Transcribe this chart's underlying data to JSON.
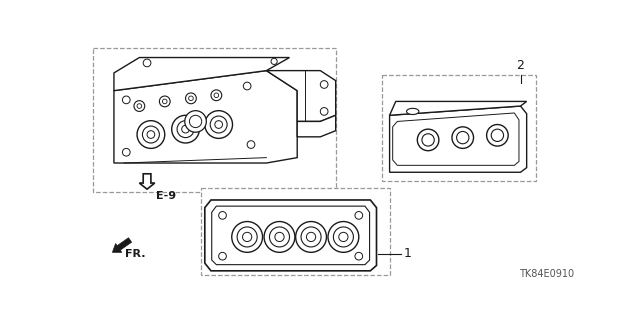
{
  "bg_color": "#ffffff",
  "line_color": "#1a1a1a",
  "dash_color": "#999999",
  "diagram_code": "TK84E0910",
  "ref_code": "E-9",
  "part1_label": "1",
  "part2_label": "2",
  "fr_label": "FR."
}
